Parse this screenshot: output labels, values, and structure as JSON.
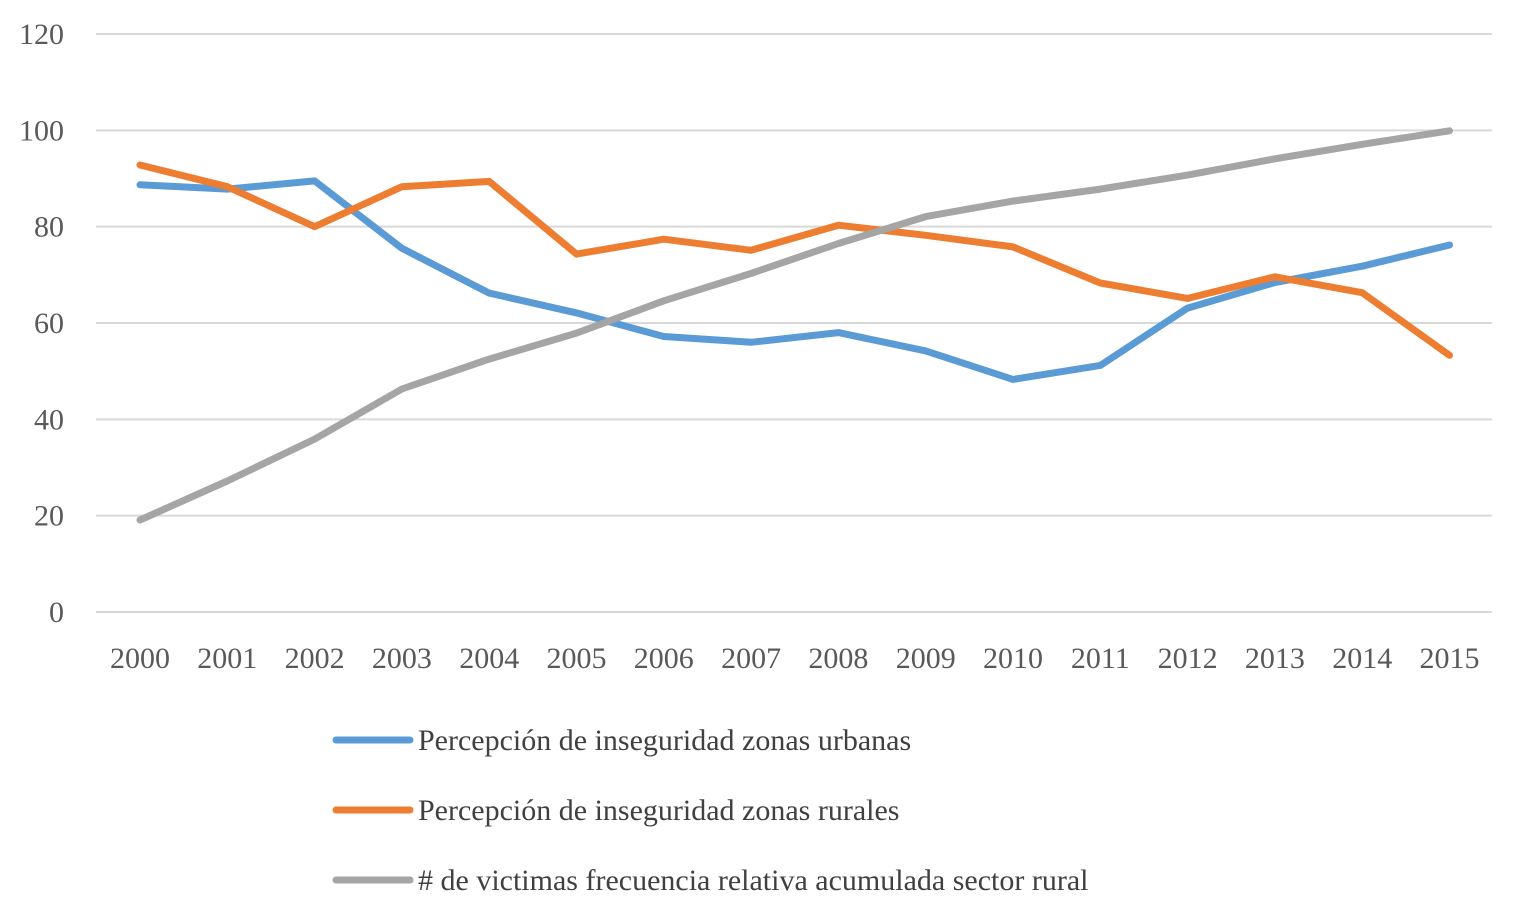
{
  "chart_data": {
    "type": "line",
    "title": "",
    "xlabel": "",
    "ylabel": "",
    "ylim": [
      0,
      120
    ],
    "yticks": [
      0,
      20,
      40,
      60,
      80,
      100,
      120
    ],
    "grid": true,
    "legend_position": "bottom",
    "categories": [
      "2000",
      "2001",
      "2002",
      "2003",
      "2004",
      "2005",
      "2006",
      "2007",
      "2008",
      "2009",
      "2010",
      "2011",
      "2012",
      "2013",
      "2014",
      "2015"
    ],
    "series": [
      {
        "name": "Percepción de inseguridad zonas urbanas",
        "color": "#5b9bd5",
        "values": [
          88.7,
          87.8,
          89.5,
          75.5,
          66.2,
          62.1,
          57.2,
          56.0,
          58.0,
          54.2,
          48.3,
          51.2,
          63.1,
          68.4,
          71.8,
          76.2
        ]
      },
      {
        "name": "Percepción de inseguridad zonas rurales",
        "color": "#ed7d31",
        "values": [
          92.8,
          88.3,
          80.0,
          88.3,
          89.4,
          74.3,
          77.4,
          75.1,
          80.3,
          78.2,
          75.8,
          68.3,
          65.1,
          69.6,
          66.3,
          53.3
        ]
      },
      {
        "name": "# de victimas frecuencia relativa acumulada sector rural",
        "color": "#a5a5a5",
        "values": [
          19.1,
          27.2,
          35.9,
          46.3,
          52.5,
          57.9,
          64.6,
          70.3,
          76.5,
          82.1,
          85.3,
          87.8,
          90.7,
          94.1,
          97.1,
          99.9
        ]
      }
    ]
  }
}
